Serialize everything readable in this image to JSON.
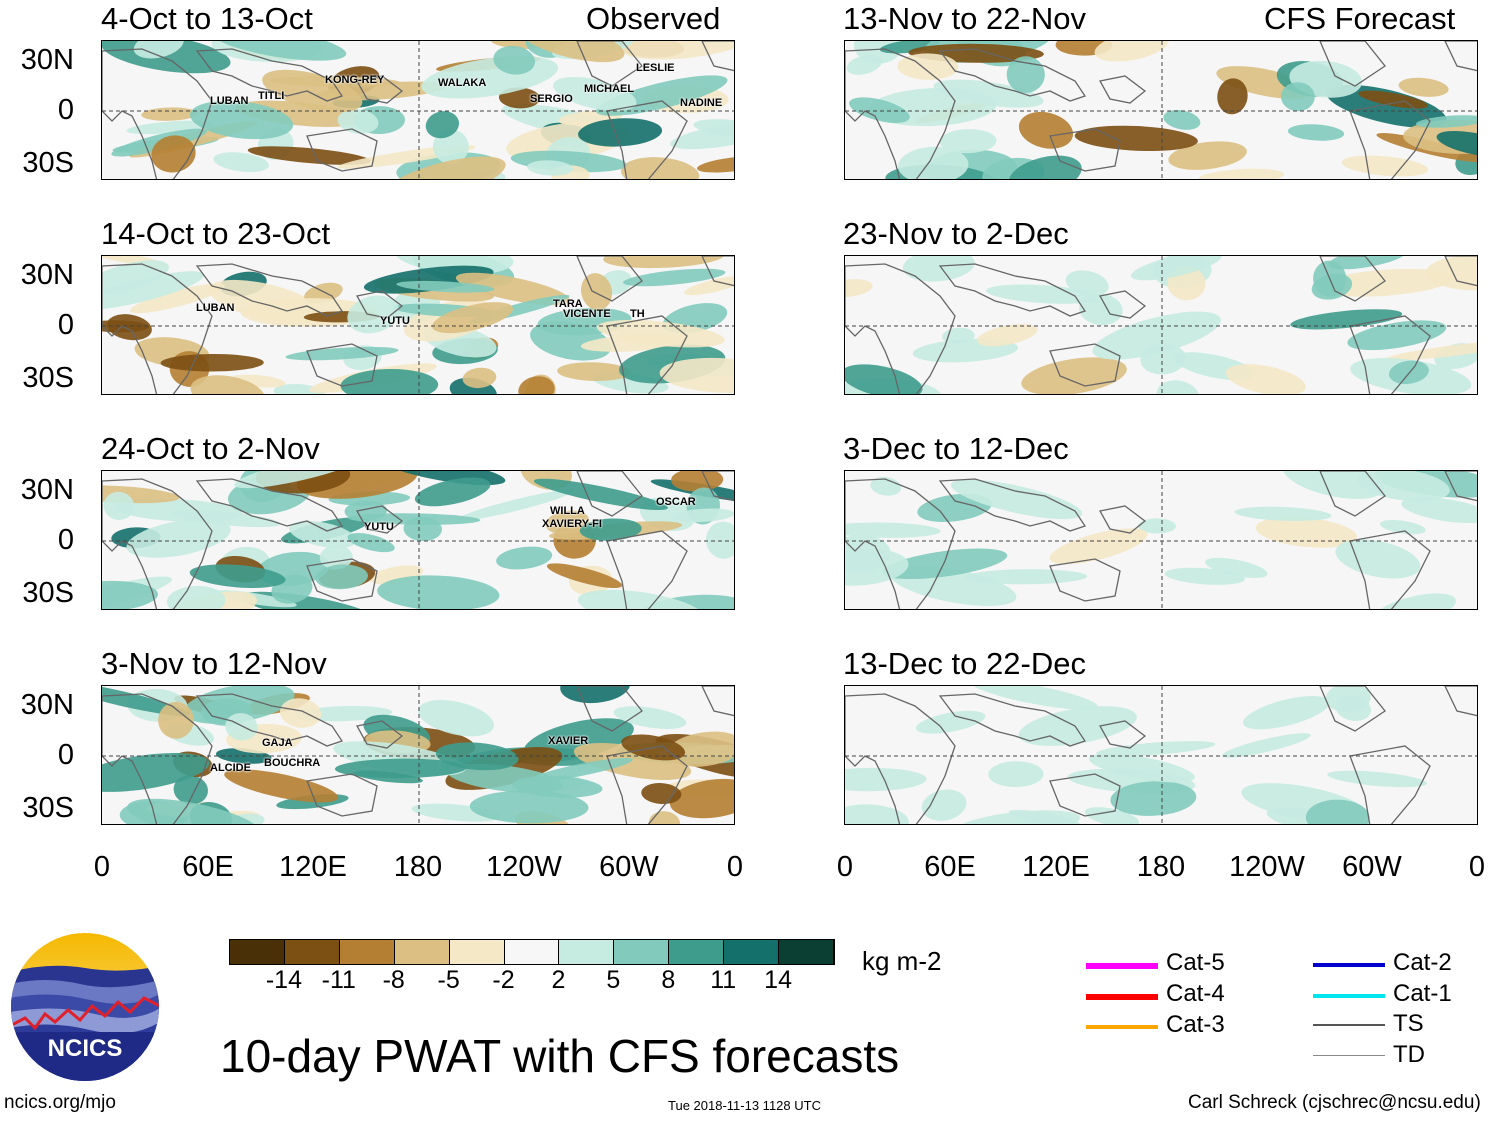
{
  "figure": {
    "title": "10-day PWAT with CFS forecasts",
    "column_labels": {
      "observed": "Observed",
      "forecast": "CFS Forecast"
    },
    "units": "kg m-2",
    "footer_left": "ncics.org/mjo",
    "footer_center": "Tue 2018-11-13 1128 UTC",
    "footer_right": "Carl Schreck (cjschrec@ncsu.edu)",
    "logo_text": "NCICS"
  },
  "axes": {
    "lat_labels": [
      "30N",
      "0",
      "30S"
    ],
    "lon_labels": [
      "0",
      "60E",
      "120E",
      "180",
      "120W",
      "60W",
      "0"
    ]
  },
  "panels": {
    "observed": [
      {
        "period": "4-Oct to 13-Oct",
        "storms": [
          {
            "name": "LUBAN"
          },
          {
            "name": "TITLI"
          },
          {
            "name": "KONG-REY"
          },
          {
            "name": "WALAKA"
          },
          {
            "name": "SERGIO"
          },
          {
            "name": "MICHAEL"
          },
          {
            "name": "LESLIE"
          },
          {
            "name": "NADINE"
          }
        ]
      },
      {
        "period": "14-Oct to 23-Oct",
        "storms": [
          {
            "name": "LUBAN"
          },
          {
            "name": "YUTU"
          },
          {
            "name": "TARA"
          },
          {
            "name": "VICENTE"
          },
          {
            "name": "TH"
          }
        ]
      },
      {
        "period": "24-Oct to 2-Nov",
        "storms": [
          {
            "name": "YUTU"
          },
          {
            "name": "WILLA"
          },
          {
            "name": "XAVIERY-FI"
          },
          {
            "name": "OSCAR"
          }
        ]
      },
      {
        "period": "3-Nov to 12-Nov",
        "storms": [
          {
            "name": "GAJA"
          },
          {
            "name": "BOUCHRA"
          },
          {
            "name": "ALCIDE"
          },
          {
            "name": "XAVIER"
          }
        ]
      }
    ],
    "forecast": [
      {
        "period": "13-Nov to 22-Nov"
      },
      {
        "period": "23-Nov to 2-Dec"
      },
      {
        "period": "3-Dec to 12-Dec"
      },
      {
        "period": "13-Dec to 22-Dec"
      }
    ]
  },
  "colorbar": {
    "colors": [
      "#4a3006",
      "#7c4f13",
      "#b57f33",
      "#dcc083",
      "#f4e8c7",
      "#f7f7f7",
      "#c6ebe1",
      "#82cbbc",
      "#3e9c8d",
      "#14706a",
      "#0b3f33"
    ],
    "labels": [
      "-14",
      "-11",
      "-8",
      "-5",
      "-2",
      "2",
      "5",
      "8",
      "11",
      "14"
    ]
  },
  "legend": [
    {
      "label": "Cat-5",
      "color": "#ff00ff"
    },
    {
      "label": "Cat-4",
      "color": "#ff0000"
    },
    {
      "label": "Cat-3",
      "color": "#ffa500"
    },
    {
      "label": "Cat-2",
      "color": "#0000cc"
    },
    {
      "label": "Cat-1",
      "color": "#00e5ee"
    },
    {
      "label": "TS",
      "color": "#555555"
    },
    {
      "label": "TD",
      "color": "#888888"
    }
  ]
}
